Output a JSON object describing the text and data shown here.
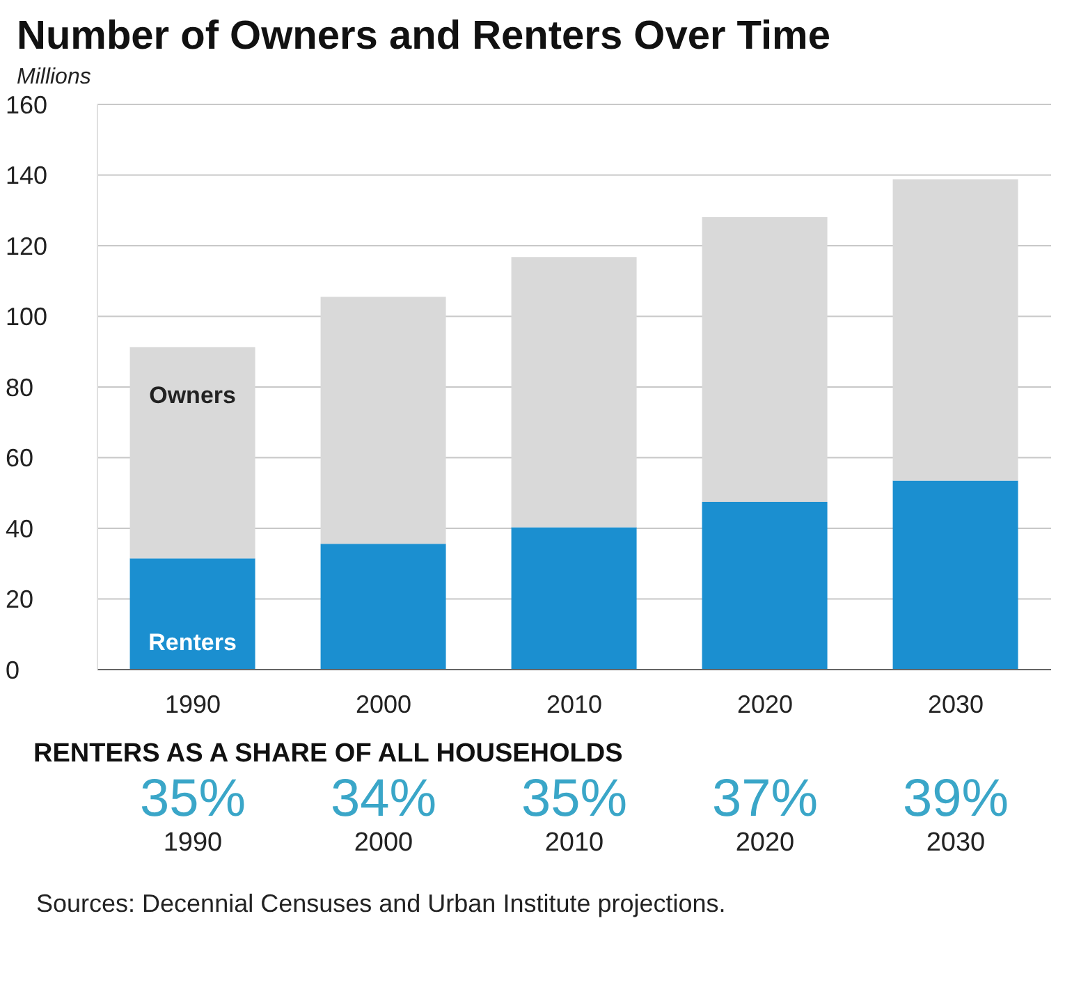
{
  "chart_data": {
    "type": "bar",
    "title": "Number of Owners and Renters Over Time",
    "ylabel": "Millions",
    "categories": [
      "1990",
      "2000",
      "2010",
      "2020",
      "2030"
    ],
    "stacked": true,
    "series": [
      {
        "name": "Renters",
        "color": "#1b8fd0",
        "values": [
          31.5,
          35.6,
          40.3,
          47.5,
          53.5
        ]
      },
      {
        "name": "Owners",
        "color": "#d9d9d9",
        "values": [
          59.8,
          69.9,
          76.5,
          80.6,
          85.3
        ]
      }
    ],
    "ylim": [
      0,
      160
    ],
    "yticks": [
      0,
      20,
      40,
      60,
      80,
      100,
      120,
      140,
      160
    ],
    "grid": "y",
    "legend": false,
    "annotations": [
      "RENTERS AS A SHARE OF ALL HOUSEHOLDS",
      "35%",
      "34%",
      "35%",
      "37%",
      "39%",
      "Sources: Decennial Censuses and Urban Institute projections."
    ]
  }
}
